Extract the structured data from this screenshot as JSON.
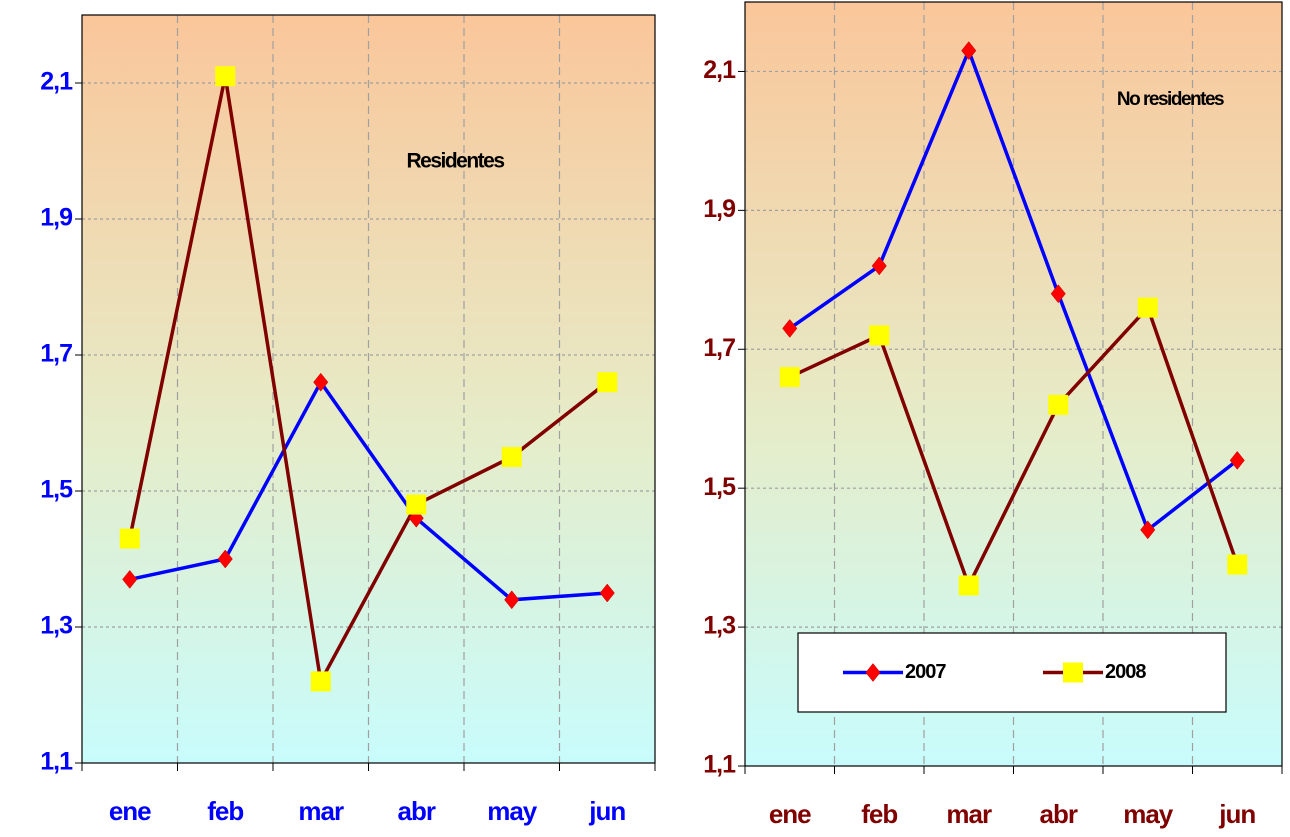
{
  "chart_data": [
    {
      "type": "line",
      "categories": [
        "ene",
        "feb",
        "mar",
        "abr",
        "may",
        "jun"
      ],
      "series": [
        {
          "color": "#0000ff",
          "marker": "diamond",
          "marker_color": "#ff0000",
          "values": [
            1.37,
            1.4,
            1.66,
            1.46,
            1.34,
            1.35
          ]
        },
        {
          "color": "#800000",
          "marker": "square",
          "marker_color": "#ffff00",
          "values": [
            1.43,
            2.11,
            1.22,
            1.48,
            1.55,
            1.66
          ]
        }
      ],
      "ylim": [
        1.1,
        2.2
      ],
      "yticks": [
        {
          "value": 1.1,
          "label": "1,1"
        },
        {
          "value": 1.3,
          "label": "1,3"
        },
        {
          "value": 1.5,
          "label": "1,5"
        },
        {
          "value": 1.7,
          "label": "1,7"
        },
        {
          "value": 1.9,
          "label": "1,9"
        },
        {
          "value": 2.1,
          "label": "2,1"
        }
      ],
      "annotation": "Residentes",
      "label_color": "#0000ff",
      "grid": true
    },
    {
      "type": "line",
      "categories": [
        "ene",
        "feb",
        "mar",
        "abr",
        "may",
        "jun"
      ],
      "series": [
        {
          "name": "2007",
          "color": "#0000ff",
          "marker": "diamond",
          "marker_color": "#ff0000",
          "values": [
            1.73,
            1.82,
            2.13,
            1.78,
            1.44,
            1.54
          ]
        },
        {
          "name": "2008",
          "color": "#800000",
          "marker": "square",
          "marker_color": "#ffff00",
          "values": [
            1.66,
            1.72,
            1.36,
            1.62,
            1.76,
            1.39
          ]
        }
      ],
      "ylim": [
        1.1,
        2.2
      ],
      "yticks": [
        {
          "value": 1.1,
          "label": "1,1"
        },
        {
          "value": 1.3,
          "label": "1,3"
        },
        {
          "value": 1.5,
          "label": "1,5"
        },
        {
          "value": 1.7,
          "label": "1,7"
        },
        {
          "value": 1.9,
          "label": "1,9"
        },
        {
          "value": 2.1,
          "label": "2,1"
        }
      ],
      "annotation": "No residentes",
      "label_color": "#800000",
      "legend": "bottom",
      "grid": true
    }
  ]
}
